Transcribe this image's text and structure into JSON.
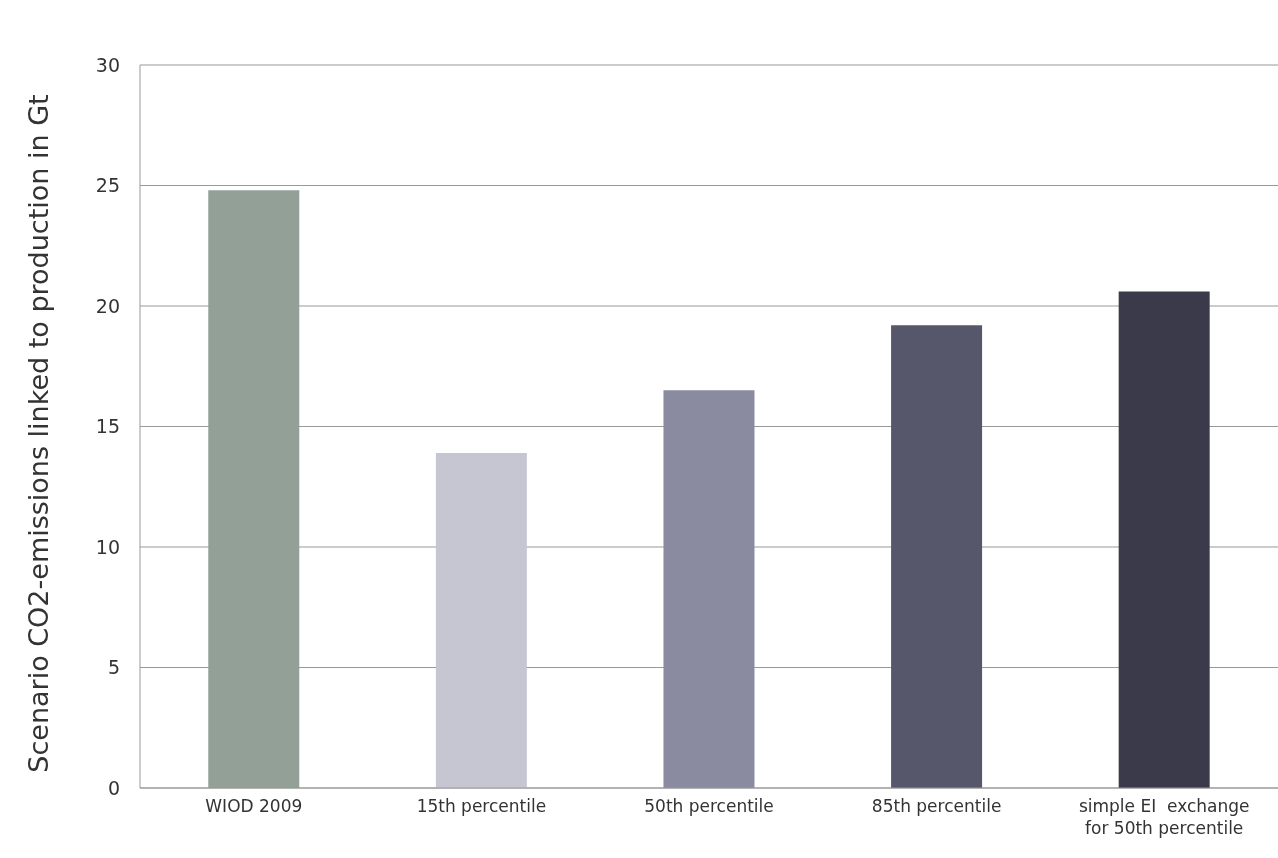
{
  "chart_data": {
    "type": "bar",
    "ylabel": "Scenario CO2-emissions linked to production in Gt",
    "categories": [
      "WIOD 2009",
      "15th percentile",
      "50th percentile",
      "85th percentile",
      "simple EI  exchange for 50th percentile"
    ],
    "values": [
      24.8,
      13.9,
      16.5,
      19.2,
      20.6
    ],
    "colors": [
      "#92a097",
      "#c6c6d2",
      "#8a8aa0",
      "#57576b",
      "#3b3a4a"
    ],
    "ylim": [
      0,
      30
    ],
    "yticks": [
      0,
      5,
      10,
      15,
      20,
      25,
      30
    ],
    "grid": "y"
  }
}
